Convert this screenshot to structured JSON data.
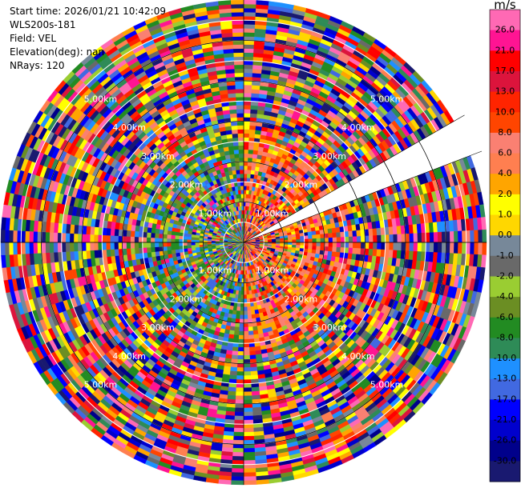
{
  "header": {
    "start_time": "Start time: 2026/01/21 10:42:09",
    "instrument": "WLS200s-181",
    "field": "Field: VEL",
    "elevation": "Elevation(deg): nan",
    "nrays": "NRays: 120"
  },
  "chart_data": {
    "type": "heatmap",
    "subtype": "polar-ppi",
    "field": "VEL",
    "n_rays": 120,
    "missing_sector_deg": [
      60,
      69
    ],
    "range_rings_km": [
      1,
      2,
      3,
      4,
      5
    ],
    "ring_labels": [
      "1.00km",
      "2.00km",
      "3.00km",
      "4.00km",
      "5.00km"
    ],
    "ring_label_angles_deg": [
      45,
      135,
      225,
      315
    ],
    "colorbar": {
      "title": "m/s",
      "ticks": [
        "26.0",
        "21.0",
        "17.0",
        "13.0",
        "10.0",
        "8.0",
        "6.0",
        "4.0",
        "2.0",
        "1.0",
        "0.0",
        "-1.0",
        "-2.0",
        "-4.0",
        "-6.0",
        "-8.0",
        "-10.0",
        "-13.0",
        "-17.0",
        "-21.0",
        "-26.0",
        "-30.0"
      ],
      "colors": [
        "#ff69b4",
        "#ff1493",
        "#ff0000",
        "#dc143c",
        "#ff2400",
        "#ff4500",
        "#fa8072",
        "#ff7f50",
        "#ffa500",
        "#ffff00",
        "#ffd700",
        "#778899",
        "#696969",
        "#9acd32",
        "#6b8e23",
        "#228b22",
        "#2e8b57",
        "#1e90ff",
        "#4169e1",
        "#0000ff",
        "#0000cd",
        "#00008b",
        "#191970"
      ]
    }
  }
}
